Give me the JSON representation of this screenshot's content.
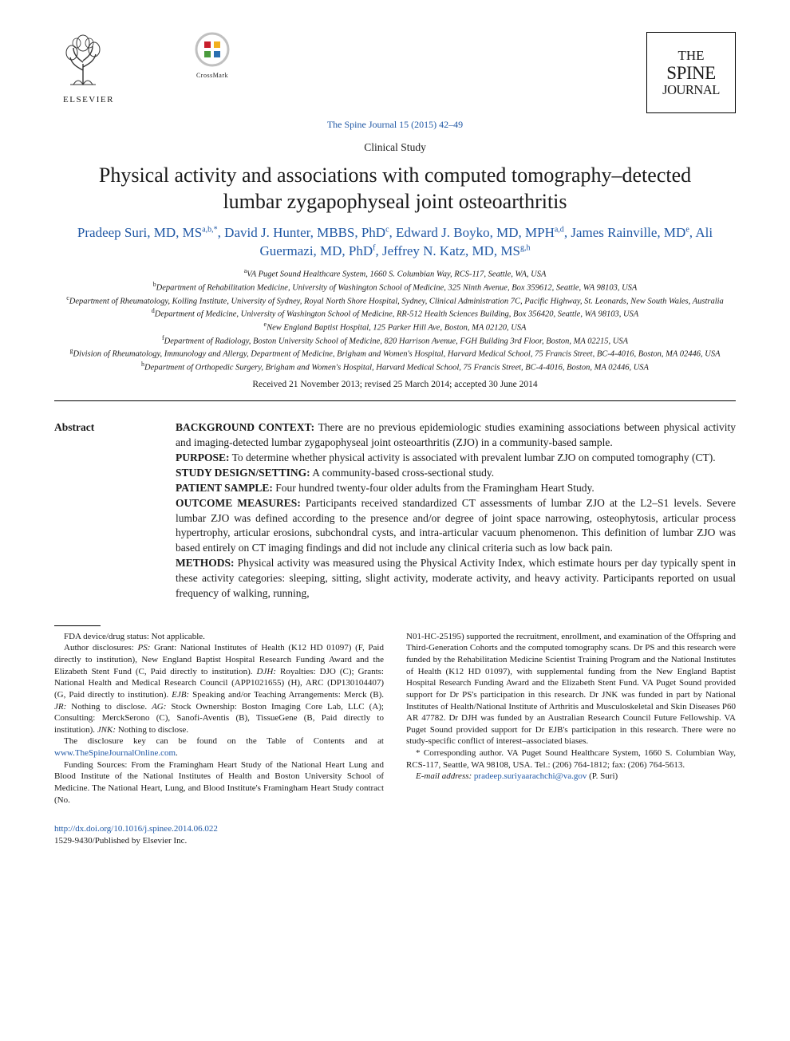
{
  "citation": "The Spine Journal 15 (2015) 42–49",
  "section_type": "Clinical Study",
  "title": "Physical activity and associations with computed tomography–detected lumbar zygapophyseal joint osteoarthritis",
  "publisher_name": "ELSEVIER",
  "crossmark_label": "CrossMark",
  "journal_logo": {
    "the": "THE",
    "spine": "SPINE",
    "journal": "JOURNAL"
  },
  "authors_html": "Pradeep Suri, MD, MS<span class='sup'>a,b,*</span>, David J. Hunter, MBBS, PhD<span class='sup'>c</span>, Edward J. Boyko, MD, MPH<span class='sup'>a,d</span>, James Rainville, MD<span class='sup'>e</span>, Ali Guermazi, MD, PhD<span class='sup'>f</span>, Jeffrey N. Katz, MD, MS<span class='sup'>g,h</span>",
  "affiliations": [
    "<span class='sup'>a</span>VA Puget Sound Healthcare System, 1660 S. Columbian Way, RCS-117, Seattle, WA, USA",
    "<span class='sup'>b</span>Department of Rehabilitation Medicine, University of Washington School of Medicine, 325 Ninth Avenue, Box 359612, Seattle, WA 98103, USA",
    "<span class='sup'>c</span>Department of Rheumatology, Kolling Institute, University of Sydney, Royal North Shore Hospital, Sydney, Clinical Administration 7C, Pacific Highway, St. Leonards, New South Wales, Australia",
    "<span class='sup'>d</span>Department of Medicine, University of Washington School of Medicine, RR-512 Health Sciences Building, Box 356420, Seattle, WA 98103, USA",
    "<span class='sup'>e</span>New England Baptist Hospital, 125 Parker Hill Ave, Boston, MA 02120, USA",
    "<span class='sup'>f</span>Department of Radiology, Boston University School of Medicine, 820 Harrison Avenue, FGH Building 3rd Floor, Boston, MA 02215, USA",
    "<span class='sup'>g</span>Division of Rheumatology, Immunology and Allergy, Department of Medicine, Brigham and Women's Hospital, Harvard Medical School, 75 Francis Street, BC-4-4016, Boston, MA 02446, USA",
    "<span class='sup'>h</span>Department of Orthopedic Surgery, Brigham and Women's Hospital, Harvard Medical School, 75 Francis Street, BC-4-4016, Boston, MA 02446, USA"
  ],
  "dates": "Received 21 November 2013; revised 25 March 2014; accepted 30 June 2014",
  "abstract_label": "Abstract",
  "abstract": [
    {
      "head": "BACKGROUND CONTEXT:",
      "body": " There are no previous epidemiologic studies examining associations between physical activity and imaging-detected lumbar zygapophyseal joint osteoarthritis (ZJO) in a community-based sample."
    },
    {
      "head": "PURPOSE:",
      "body": " To determine whether physical activity is associated with prevalent lumbar ZJO on computed tomography (CT)."
    },
    {
      "head": "STUDY DESIGN/SETTING:",
      "body": " A community-based cross-sectional study."
    },
    {
      "head": "PATIENT SAMPLE:",
      "body": " Four hundred twenty-four older adults from the Framingham Heart Study."
    },
    {
      "head": "OUTCOME MEASURES:",
      "body": " Participants received standardized CT assessments of lumbar ZJO at the L2–S1 levels. Severe lumbar ZJO was defined according to the presence and/or degree of joint space narrowing, osteophytosis, articular process hypertrophy, articular erosions, subchondral cysts, and intra-articular vacuum phenomenon. This definition of lumbar ZJO was based entirely on CT imaging findings and did not include any clinical criteria such as low back pain."
    },
    {
      "head": "METHODS:",
      "body": " Physical activity was measured using the Physical Activity Index, which estimate hours per day typically spent in these activity categories: sleeping, sitting, slight activity, moderate activity, and heavy activity. Participants reported on usual frequency of walking, running,"
    }
  ],
  "footnotes": {
    "col1": [
      "FDA device/drug status: Not applicable.",
      "Author disclosures: <span class='ital'>PS:</span> Grant: National Institutes of Health (K12 HD 01097) (F, Paid directly to institution), New England Baptist Hospital Research Funding Award and the Elizabeth Stent Fund (C, Paid directly to institution). <span class='ital'>DJH:</span> Royalties: DJO (C); Grants: National Health and Medical Research Council (APP1021655) (H), ARC (DP130104407) (G, Paid directly to institution). <span class='ital'>EJB:</span> Speaking and/or Teaching Arrangements: Merck (B). <span class='ital'>JR:</span> Nothing to disclose. <span class='ital'>AG:</span> Stock Ownership: Boston Imaging Core Lab, LLC (A); Consulting: MerckSerono (C), Sanofi-Aventis (B), TissueGene (B, Paid directly to institution). <span class='ital'>JNK:</span> Nothing to disclose.",
      "The disclosure key can be found on the Table of Contents and at <a class='link' href='#'>www.TheSpineJournalOnline.com</a>.",
      "Funding Sources: From the Framingham Heart Study of the National Heart Lung and Blood Institute of the National Institutes of Health and Boston University School of Medicine. The National Heart, Lung, and Blood Institute's Framingham Heart Study contract (No."
    ],
    "col2": [
      "N01-HC-25195) supported the recruitment, enrollment, and examination of the Offspring and Third-Generation Cohorts and the computed tomography scans. Dr PS and this research were funded by the Rehabilitation Medicine Scientist Training Program and the National Institutes of Health (K12 HD 01097), with supplemental funding from the New England Baptist Hospital Research Funding Award and the Elizabeth Stent Fund. VA Puget Sound provided support for Dr PS's participation in this research. Dr JNK was funded in part by National Institutes of Health/National Institute of Arthritis and Musculoskeletal and Skin Diseases P60 AR 47782. Dr DJH was funded by an Australian Research Council Future Fellowship. VA Puget Sound provided support for Dr EJB's participation in this research. There were no study-specific conflict of interest–associated biases.",
      "* Corresponding author. VA Puget Sound Healthcare System, 1660 S. Columbian Way, RCS-117, Seattle, WA 98108, USA. Tel.: (206) 764-1812; fax: (206) 764-5613.",
      "<span class='ital'>E-mail address:</span> <a class='link' href='#'>pradeep.suriyaarachchi@va.gov</a> (P. Suri)"
    ]
  },
  "doi": "http://dx.doi.org/10.1016/j.spinee.2014.06.022",
  "issn_line": "1529-9430/Published by Elsevier Inc.",
  "colors": {
    "link": "#2058a5",
    "text": "#1a1a1a",
    "crossmark_ring": "#c0c0c0",
    "crossmark_red": "#c81e2b",
    "crossmark_yellow": "#f2b01e",
    "crossmark_blue": "#2a6fb0",
    "crossmark_green": "#4a9b3d"
  }
}
